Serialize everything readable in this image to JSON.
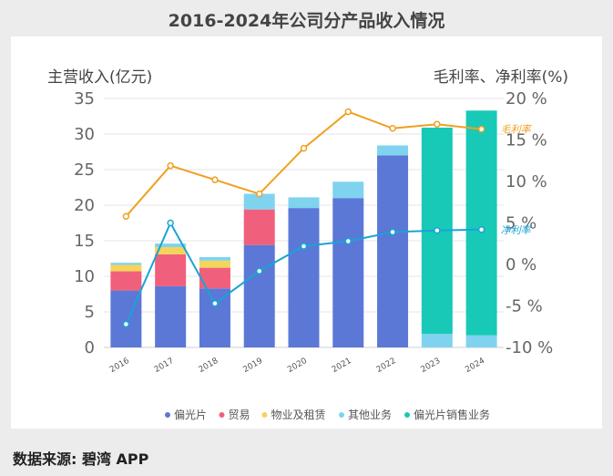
{
  "title": "2016-2024年公司分产品收入情况",
  "source": "数据来源: 碧湾 APP",
  "chart_data": {
    "type": "bar",
    "categories": [
      "2016",
      "2017",
      "2018",
      "2019",
      "2020",
      "2021",
      "2022",
      "2023",
      "2024"
    ],
    "ylabel_left": "主营收入(亿元)",
    "ylabel_right": "毛利率、净利率(%)",
    "ylim_left": [
      0,
      35
    ],
    "ylim_right": [
      -10,
      20
    ],
    "yticks_left": [
      "0",
      "5",
      "10",
      "15",
      "20",
      "25",
      "30",
      "35"
    ],
    "yticks_right": [
      "-10 %",
      "-5 %",
      "0 %",
      "5 %",
      "10 %",
      "15 %",
      "20 %"
    ],
    "bar_series": [
      {
        "name": "偏光片",
        "color": "#5b78d6",
        "values": [
          8.0,
          8.6,
          8.3,
          14.4,
          19.6,
          21.0,
          27.0,
          0,
          0
        ]
      },
      {
        "name": "贸易",
        "color": "#f0607c",
        "values": [
          2.7,
          4.5,
          2.9,
          5.0,
          0,
          0,
          0,
          0,
          0
        ]
      },
      {
        "name": "物业及租赁",
        "color": "#f5d45a",
        "values": [
          0.9,
          1.0,
          1.0,
          0,
          0,
          0,
          0,
          0,
          0
        ]
      },
      {
        "name": "其他业务",
        "color": "#7fd3ef",
        "values": [
          0.3,
          0.5,
          0.5,
          2.2,
          1.5,
          2.3,
          1.4,
          1.9,
          1.7
        ]
      },
      {
        "name": "偏光片销售业务",
        "color": "#18c9b7",
        "values": [
          0,
          0,
          0,
          0,
          0,
          0,
          0,
          29.0,
          31.6
        ]
      }
    ],
    "line_series": [
      {
        "name": "毛利率",
        "color": "#f0a020",
        "values": [
          5.8,
          11.9,
          10.2,
          8.5,
          14.0,
          18.4,
          16.4,
          16.9,
          16.3
        ]
      },
      {
        "name": "净利率",
        "color": "#1aa3d6",
        "values": [
          -7.2,
          5.0,
          -4.7,
          -0.8,
          2.2,
          2.8,
          3.9,
          4.1,
          4.2
        ]
      }
    ]
  }
}
